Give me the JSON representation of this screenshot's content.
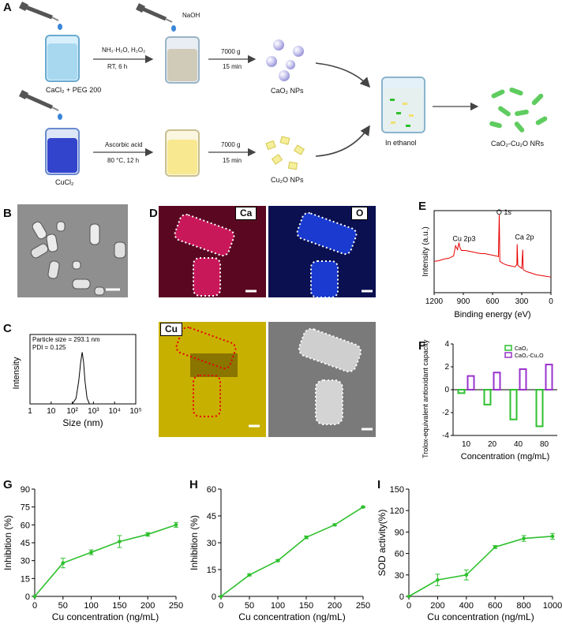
{
  "panels": {
    "A": "A",
    "B": "B",
    "C": "C",
    "D": "D",
    "E": "E",
    "F": "F",
    "G": "G",
    "H": "H",
    "I": "I"
  },
  "schematic": {
    "caco_reagent": "CaCl₂ + PEG 200",
    "step1_top": "NH₃·H₂O, H₂O₂",
    "step1_bottom": "RT, 6 h",
    "naoh": "NaOH",
    "centrifuge_top": "7000 g",
    "centrifuge_bottom": "15 min",
    "cao2_nps": "CaO₂ NPs",
    "cucl2": "CuCl₂",
    "step2_top": "Ascorbic acid",
    "step2_bottom": "80 °C, 12 h",
    "centrifuge2_top": "7000 g",
    "centrifuge2_bottom": "15 min",
    "cu2o_nps": "Cu₂O NPs",
    "in_ethanol": "In ethanol",
    "product": "CaO₂-Cu₂O NRs"
  },
  "eds_labels": {
    "ca": "Ca",
    "o": "O",
    "cu": "Cu"
  },
  "colors": {
    "green": "#2ec02e",
    "purple": "#9933cc",
    "red": "#e60000",
    "ca_map": "#c8185a",
    "o_map": "#1a3ad0",
    "cu_map": "#d8c000"
  },
  "chart_data": [
    {
      "panel": "C",
      "type": "line",
      "annotations": [
        "Particle size = 293.1 nm",
        "PDI = 0.125"
      ],
      "xlabel": "Size (nm)",
      "ylabel": "Intensity",
      "x_scale": "log",
      "x_ticks": [
        "1",
        "10",
        "10²",
        "10³",
        "10⁴",
        "10⁵"
      ],
      "series": [
        {
          "x": [
            100,
            150,
            200,
            250,
            293,
            340,
            400,
            500,
            650
          ],
          "y": [
            0,
            2,
            8,
            15,
            18.5,
            15,
            8,
            2,
            0
          ]
        }
      ],
      "ylim": [
        0,
        22
      ]
    },
    {
      "panel": "E",
      "type": "line",
      "xlabel": "Binding energy (eV)",
      "ylabel": "Intensity (a.u.)",
      "xlim": [
        1200,
        0
      ],
      "x_ticks": [
        "1200",
        "900",
        "600",
        "300",
        "0"
      ],
      "annotations": [
        "O 1s",
        "Cu 2p3",
        "Ca 2p"
      ],
      "series": [
        {
          "x": [
            1200,
            1150,
            1100,
            1050,
            1000,
            980,
            960,
            945,
            935,
            920,
            880,
            840,
            800,
            760,
            720,
            680,
            640,
            600,
            560,
            540,
            531,
            525,
            500,
            470,
            440,
            400,
            370,
            350,
            347,
            340,
            300,
            290,
            285,
            280,
            250,
            200,
            150,
            100,
            50,
            0
          ],
          "y": [
            40,
            41,
            43,
            44,
            47,
            60,
            55,
            64,
            58,
            54,
            54,
            53,
            52,
            51,
            50,
            50,
            49,
            48,
            47,
            46,
            100,
            40,
            38,
            36,
            35,
            34,
            33,
            36,
            62,
            35,
            31,
            55,
            30,
            29,
            27,
            25,
            23,
            22,
            21,
            20
          ]
        }
      ]
    },
    {
      "panel": "F",
      "type": "bar",
      "categories": [
        "10",
        "20",
        "40",
        "80"
      ],
      "xlabel": "Concentration (mg/mL)",
      "ylabel": "Trolox-equivalent antioxidant capacity (mM)",
      "ylim": [
        -4,
        4
      ],
      "y_ticks": [
        4,
        2,
        0,
        -2,
        -4
      ],
      "series": [
        {
          "name": "CaO₂",
          "values": [
            -0.3,
            -1.3,
            -2.6,
            -3.2
          ]
        },
        {
          "name": "CaO₂-Cu₂O",
          "values": [
            1.2,
            1.5,
            1.8,
            2.2
          ]
        }
      ]
    },
    {
      "panel": "G",
      "type": "line",
      "xlabel": "Cu concentration (ng/mL)",
      "ylabel": "Inhibition (%)",
      "xlim": [
        0,
        250
      ],
      "ylim": [
        0,
        90
      ],
      "x_ticks": [
        0,
        50,
        100,
        150,
        200,
        250
      ],
      "y_ticks": [
        0,
        15,
        30,
        45,
        60,
        75,
        90
      ],
      "series": [
        {
          "x": [
            0,
            50,
            100,
            150,
            200,
            250
          ],
          "y": [
            0,
            28,
            37,
            46,
            52,
            60
          ],
          "err": [
            0,
            4,
            2,
            5,
            1.5,
            2
          ]
        }
      ]
    },
    {
      "panel": "H",
      "type": "line",
      "xlabel": "Cu concentration (ng/mL)",
      "ylabel": "Inhibition (%)",
      "xlim": [
        0,
        250
      ],
      "ylim": [
        0,
        60
      ],
      "x_ticks": [
        0,
        50,
        100,
        150,
        200,
        250
      ],
      "y_ticks": [
        0,
        15,
        30,
        45,
        60
      ],
      "series": [
        {
          "x": [
            0,
            50,
            100,
            150,
            200,
            250
          ],
          "y": [
            0,
            12,
            20,
            33,
            40,
            50
          ],
          "err": [
            0,
            0.5,
            0.5,
            0.8,
            0.5,
            0.3
          ]
        }
      ]
    },
    {
      "panel": "I",
      "type": "line",
      "xlabel": "Cu concentration (ng/mL)",
      "ylabel": "SOD activity(%)",
      "xlim": [
        0,
        1000
      ],
      "ylim": [
        0,
        150
      ],
      "x_ticks": [
        0,
        200,
        400,
        600,
        800,
        1000
      ],
      "y_ticks": [
        0,
        30,
        60,
        90,
        120,
        150
      ],
      "series": [
        {
          "x": [
            0,
            200,
            400,
            600,
            800,
            1000
          ],
          "y": [
            0,
            23,
            30,
            69,
            81,
            84
          ],
          "err": [
            0,
            8,
            7,
            2,
            4,
            4
          ]
        }
      ]
    }
  ]
}
